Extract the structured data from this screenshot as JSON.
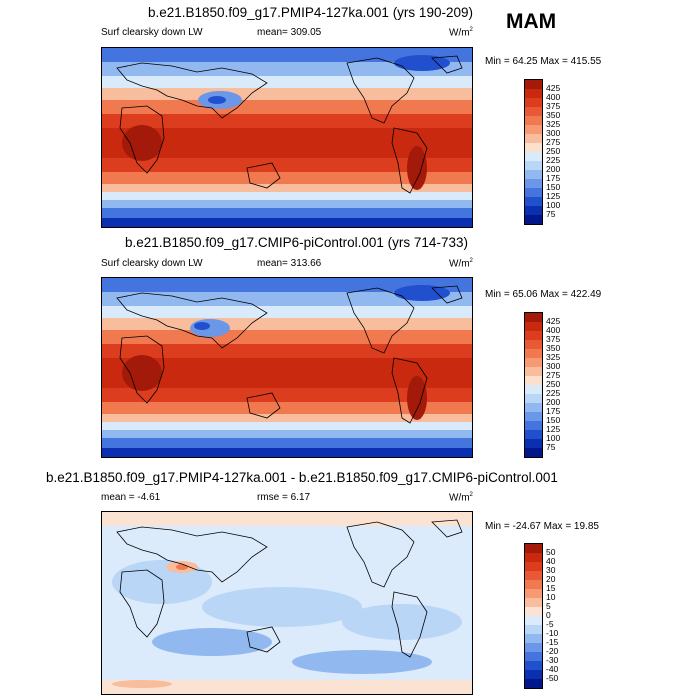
{
  "season": "MAM",
  "panels": [
    {
      "title": "b.e21.B1850.f09_g17.PMIP4-127ka.001 (yrs 190-209)",
      "left_label": "Surf clearsky down LW",
      "center_label": "mean= 309.05",
      "units": "W/m",
      "units_exp": "2",
      "minmax": "Min =  64.25 Max = 415.55",
      "colorbar": {
        "ticks": [
          "425",
          "400",
          "375",
          "350",
          "325",
          "300",
          "275",
          "250",
          "225",
          "200",
          "175",
          "150",
          "125",
          "100",
          "75"
        ],
        "colors": [
          "#a31a0a",
          "#c8290f",
          "#dc3d1f",
          "#e85a36",
          "#f0794f",
          "#f59a73",
          "#f8bd9d",
          "#fbe0cc",
          "#d9ebfb",
          "#b9d6f7",
          "#92b8f0",
          "#6b97e8",
          "#4474de",
          "#2150cf",
          "#0a2fb0",
          "#02178a"
        ]
      }
    },
    {
      "title": "b.e21.B1850.f09_g17.CMIP6-piControl.001 (yrs 714-733)",
      "left_label": "Surf clearsky down LW",
      "center_label": "mean= 313.66",
      "units": "W/m",
      "units_exp": "2",
      "minmax": "Min =  65.06 Max = 422.49",
      "colorbar": {
        "ticks": [
          "425",
          "400",
          "375",
          "350",
          "325",
          "300",
          "275",
          "250",
          "225",
          "200",
          "175",
          "150",
          "125",
          "100",
          "75"
        ],
        "colors": [
          "#a31a0a",
          "#c8290f",
          "#dc3d1f",
          "#e85a36",
          "#f0794f",
          "#f59a73",
          "#f8bd9d",
          "#fbe0cc",
          "#d9ebfb",
          "#b9d6f7",
          "#92b8f0",
          "#6b97e8",
          "#4474de",
          "#2150cf",
          "#0a2fb0",
          "#02178a"
        ]
      }
    },
    {
      "title": "b.e21.B1850.f09_g17.PMIP4-127ka.001 - b.e21.B1850.f09_g17.CMIP6-piControl.001",
      "left_label": "mean =  -4.61",
      "center_label": "rmse =   6.17",
      "units": "W/m",
      "units_exp": "2",
      "minmax": "Min = -24.67 Max =  19.85",
      "colorbar": {
        "ticks": [
          "50",
          "40",
          "30",
          "20",
          "15",
          "10",
          "5",
          "0",
          "-5",
          "-10",
          "-15",
          "-20",
          "-30",
          "-40",
          "-50"
        ],
        "colors": [
          "#a31a0a",
          "#c8290f",
          "#dc3d1f",
          "#e85a36",
          "#f0794f",
          "#f59a73",
          "#f8bd9d",
          "#fbe3d3",
          "#dcebfb",
          "#b9d6f7",
          "#92b8f0",
          "#6b97e8",
          "#4474de",
          "#2150cf",
          "#0a2fb0",
          "#02178a"
        ]
      }
    }
  ]
}
